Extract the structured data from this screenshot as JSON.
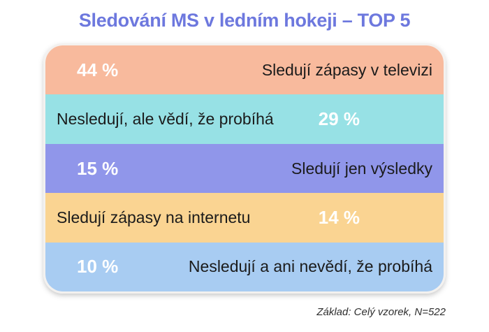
{
  "title": {
    "text": "Sledování MS v ledním hokeji – TOP 5",
    "color": "#6D78DE"
  },
  "footer": {
    "text": "Základ: Celý vzorek, N=522"
  },
  "bands": [
    {
      "percent": "44 %",
      "label": "Sledují zápasy v televizi",
      "color": "#F8BA9D",
      "percent_side": "left"
    },
    {
      "percent": "29 %",
      "label": "Nesledují, ale vědí, že probíhá",
      "color": "#97E1E5",
      "percent_side": "right"
    },
    {
      "percent": "15 %",
      "label": "Sledují jen výsledky",
      "color": "#9096EA",
      "percent_side": "left"
    },
    {
      "percent": "14 %",
      "label": "Sledují zápasy na internetu",
      "color": "#FAD492",
      "percent_side": "right"
    },
    {
      "percent": "10 %",
      "label": "Nesledují a ani nevědí, že probíhá",
      "color": "#A8CCF2",
      "percent_side": "left"
    }
  ],
  "chart_data": {
    "type": "bar",
    "title": "Sledování MS v ledním hokeji – TOP 5",
    "categories": [
      "Sledují zápasy v televizi",
      "Nesledují, ale vědí, že probíhá",
      "Sledují jen výsledky",
      "Sledují zápasy na internetu",
      "Nesledují a ani nevědí, že probíhá"
    ],
    "values": [
      44,
      29,
      15,
      14,
      10
    ],
    "unit": "%",
    "value_labels": [
      "44 %",
      "29 %",
      "15 %",
      "14 %",
      "10 %"
    ],
    "colors": [
      "#F8BA9D",
      "#97E1E5",
      "#9096EA",
      "#FAD492",
      "#A8CCF2"
    ],
    "note": "Základ: Celý vzorek, N=522",
    "orientation": "horizontal-band-list",
    "legend": "none",
    "grid": false
  }
}
